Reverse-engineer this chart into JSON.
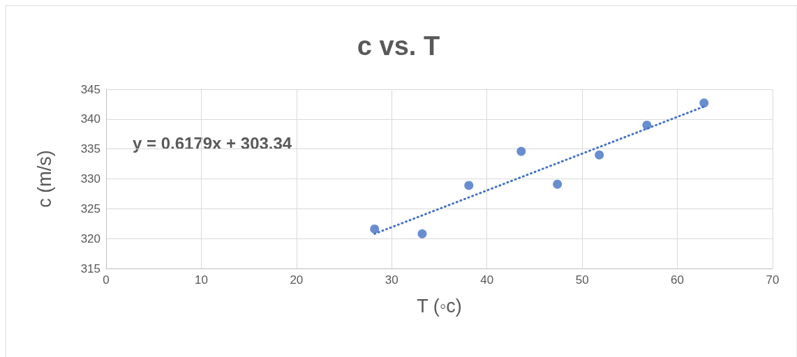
{
  "chart_data": {
    "type": "scatter",
    "title": "c vs. T",
    "xlabel": "T (◦c)",
    "ylabel": "c (m/s)",
    "xlim": [
      0,
      70
    ],
    "xticks": [
      0,
      10,
      20,
      30,
      40,
      50,
      60,
      70
    ],
    "ylim": [
      315,
      345
    ],
    "yticks": [
      315,
      320,
      325,
      330,
      335,
      340,
      345
    ],
    "grid": true,
    "marker": "circle",
    "annotations": [
      "y = 0.6179x + 303.34"
    ],
    "series": [
      {
        "color": "#4472c4",
        "x": [
          28.2,
          33.2,
          38.1,
          43.6,
          47.4,
          51.8,
          56.8,
          62.8
        ],
        "values": [
          321.6,
          320.8,
          328.9,
          334.6,
          329.1,
          334.0,
          339.0,
          342.7
        ]
      },
      {
        "type": "line",
        "color": "#4472c4",
        "line_style": "dotted",
        "marker": "none",
        "x": [
          28.2,
          62.8
        ],
        "values": [
          320.8,
          342.1
        ]
      }
    ]
  }
}
